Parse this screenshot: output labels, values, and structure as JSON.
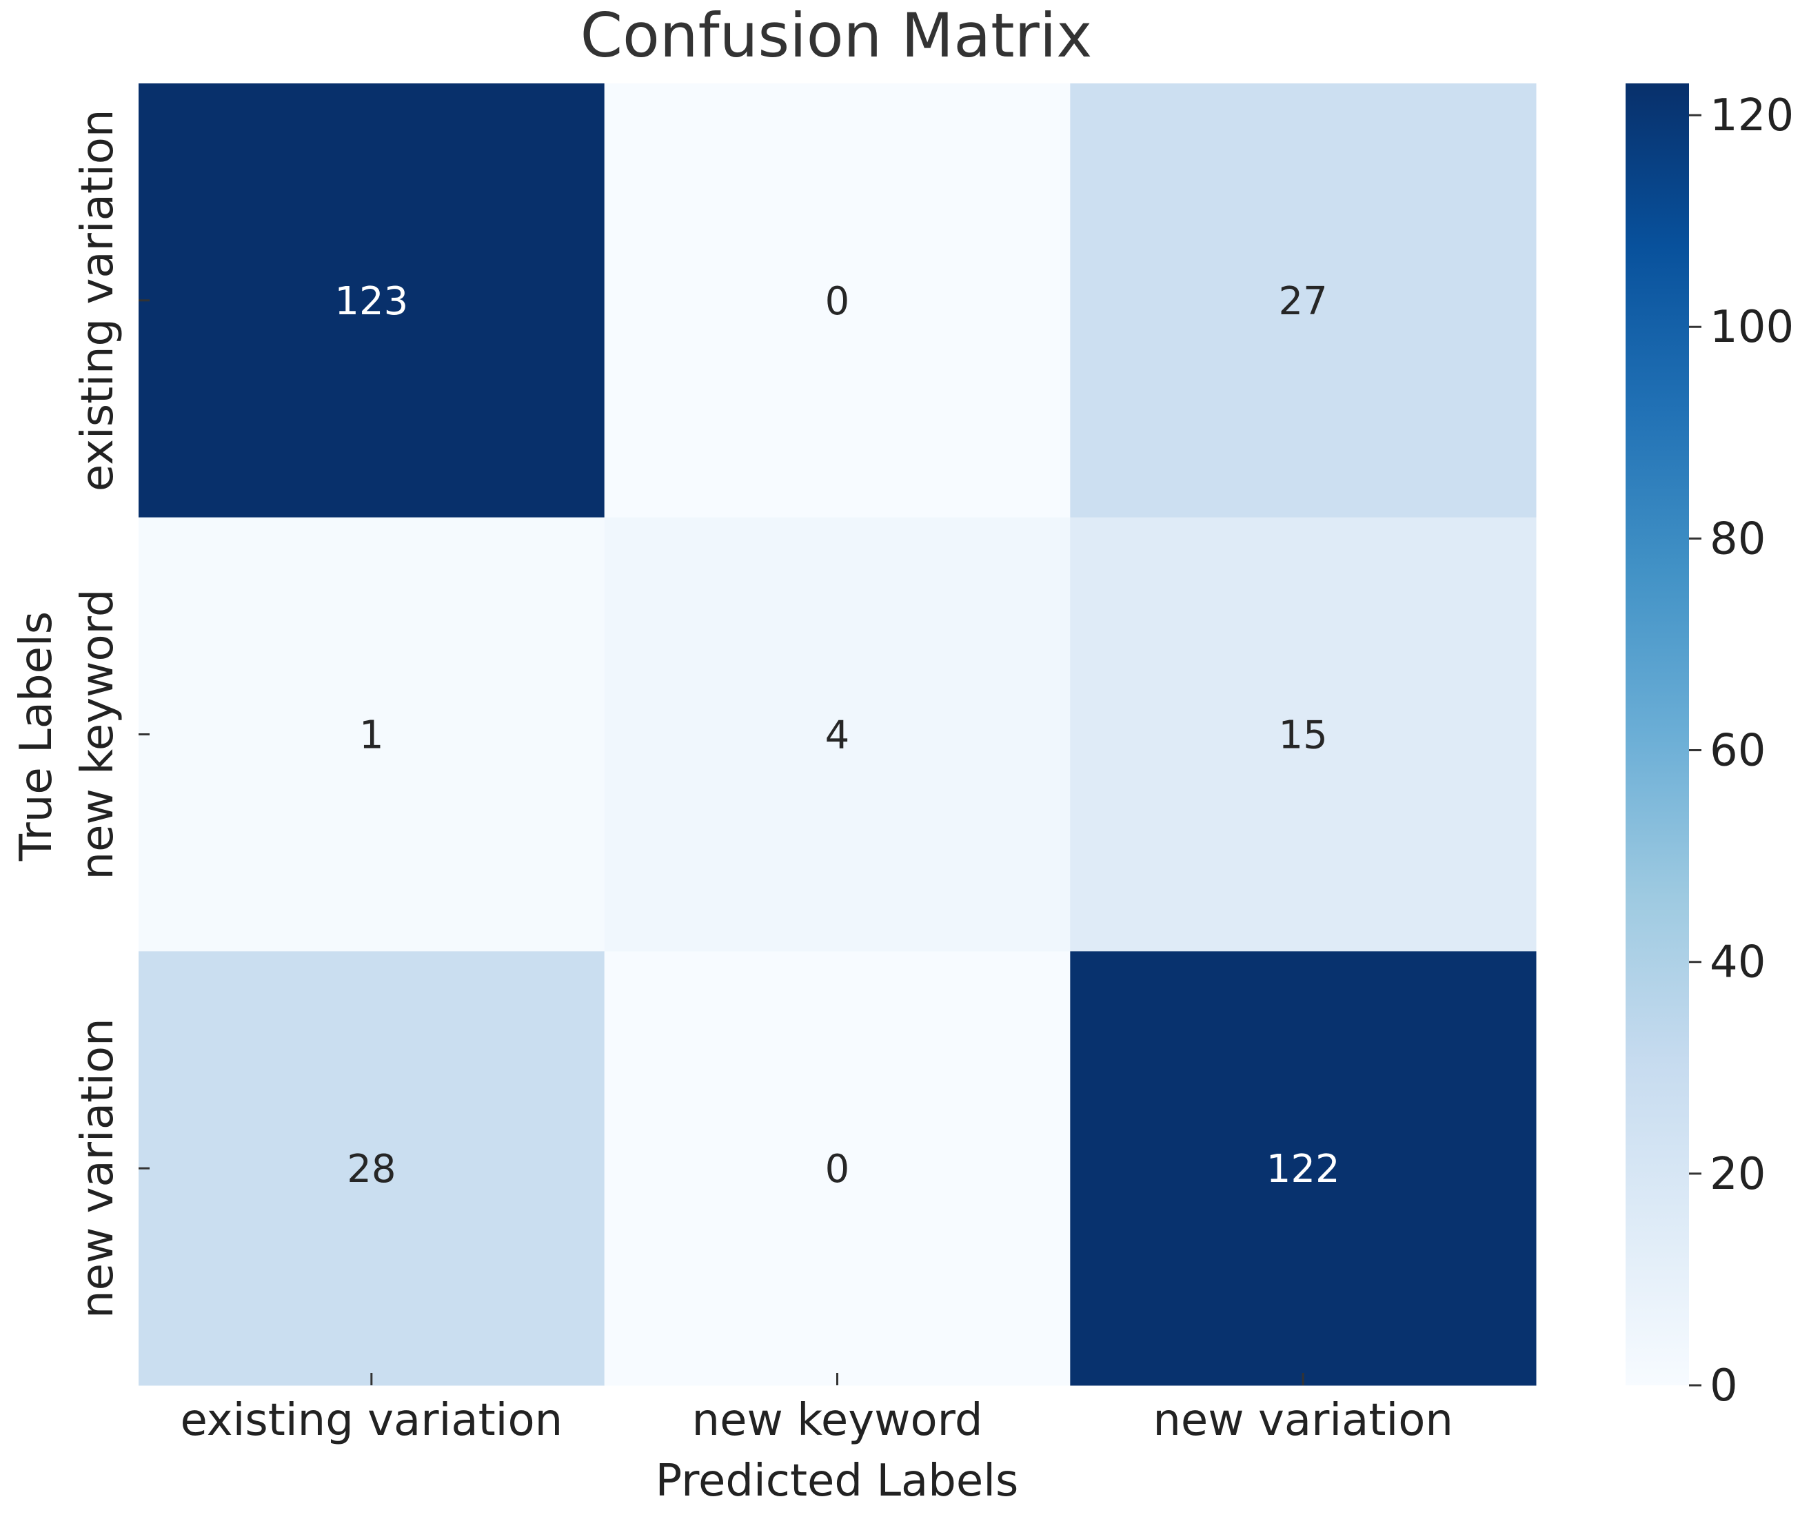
{
  "chart_data": {
    "type": "heatmap",
    "title": "Confusion Matrix",
    "xlabel": "Predicted Labels",
    "ylabel": "True Labels",
    "x_categories": [
      "existing variation",
      "new keyword",
      "new variation"
    ],
    "y_categories": [
      "existing variation",
      "new keyword",
      "new variation"
    ],
    "values": [
      [
        123,
        0,
        27
      ],
      [
        1,
        4,
        15
      ],
      [
        28,
        0,
        122
      ]
    ],
    "colorbar": {
      "vmin": 0,
      "vmax": 123,
      "ticks": [
        0,
        20,
        40,
        60,
        80,
        100,
        120
      ],
      "colormap": "Blues"
    },
    "grid": false
  }
}
